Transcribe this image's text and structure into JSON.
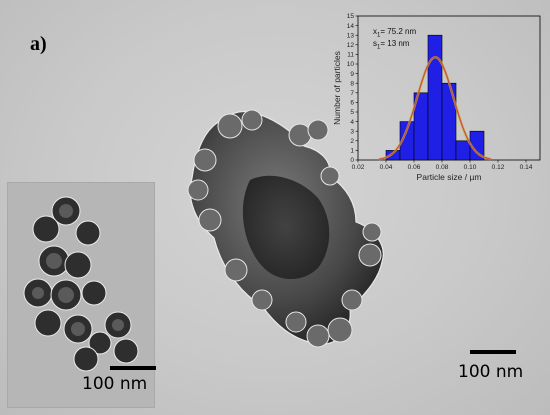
{
  "panel_label": "a)",
  "scale_bar_inset": "100 nm",
  "scale_bar_main": "100 nm",
  "colors": {
    "bar_fill": "#1f1fe6",
    "bar_stroke": "#000000",
    "fit_curve": "#c0504d",
    "fit_curve_under": "#d4a21a",
    "background": "#c9c9c9"
  },
  "chart_data": {
    "type": "bar",
    "title": "",
    "xlabel": "Particle size / µm",
    "ylabel": "Number of particles",
    "xlim": [
      0.02,
      0.15
    ],
    "ylim": [
      0,
      15
    ],
    "x_ticks": [
      0.02,
      0.04,
      0.06,
      0.08,
      0.1,
      0.12,
      0.14
    ],
    "x_tick_labels": [
      "0.02",
      "0.04",
      "0.06",
      "0.08",
      "0.10",
      "0.12",
      "0.14"
    ],
    "y_ticks": [
      0,
      1,
      2,
      3,
      4,
      5,
      6,
      7,
      8,
      9,
      10,
      11,
      12,
      13,
      14,
      15
    ],
    "y_tick_labels": [
      "0",
      "1",
      "2",
      "3",
      "4",
      "5",
      "6",
      "7",
      "8",
      "9",
      "10",
      "11",
      "12",
      "13",
      "14",
      "15"
    ],
    "bin_width": 0.01,
    "bin_centers": [
      0.045,
      0.055,
      0.065,
      0.075,
      0.085,
      0.095,
      0.105
    ],
    "values": [
      1,
      4,
      7,
      13,
      8,
      2,
      3
    ],
    "fit": {
      "type": "gaussian",
      "mean": 0.0752,
      "sd": 0.013,
      "peak": 10.7
    },
    "annotations": [
      {
        "var": "x",
        "sub": "1",
        "text": "= 75.2 nm"
      },
      {
        "var": "s",
        "sub": "1",
        "text": "= 13 nm"
      }
    ],
    "grid": false
  }
}
